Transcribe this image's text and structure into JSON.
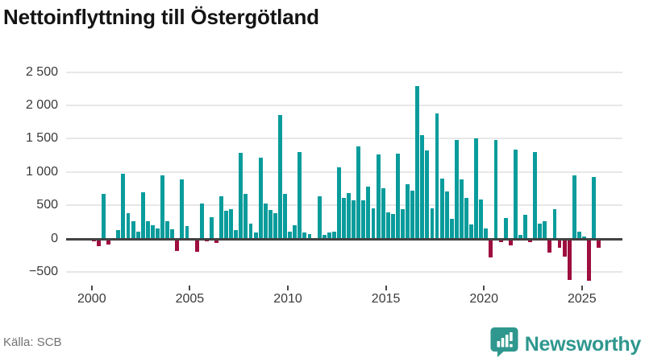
{
  "title": "Nettoinflyttning till Östergötland",
  "source": "Källa: SCB",
  "branding": {
    "name": "Newsworthy",
    "badge_icon": "bar-chart-speech-bubble-icon"
  },
  "colors": {
    "positive_bar": "#0a9c9c",
    "negative_bar": "#9e0e3e",
    "logo_teal": "#2f978e",
    "grid": "#e7e7e7",
    "zero_line": "#424242",
    "axis_text": "#3a3a3a",
    "source_text": "#737373",
    "title_text": "#141414"
  },
  "chart_data": {
    "type": "bar",
    "title": "Nettoinflyttning till Östergötland",
    "unit": "personer (nettoinflyttning per kvartal)",
    "frequency": "quarterly",
    "start": "2000-Q1",
    "end": "2025-Q4",
    "grid": "horizontal",
    "legend": "none",
    "ylim": [
      -700,
      2600
    ],
    "x_tick_years": [
      2000,
      2005,
      2010,
      2015,
      2020,
      2025
    ],
    "y_ticks": [
      {
        "value": 2500,
        "label": "2 500"
      },
      {
        "value": 2000,
        "label": "2 000"
      },
      {
        "value": 1500,
        "label": "1 500"
      },
      {
        "value": 1000,
        "label": "1 000"
      },
      {
        "value": 500,
        "label": "500"
      },
      {
        "value": 0,
        "label": "0"
      },
      {
        "value": -500,
        "label": "−500"
      }
    ],
    "years": [
      {
        "year": 2000,
        "q": [
          -40,
          -115,
          670,
          -90
        ]
      },
      {
        "year": 2001,
        "q": [
          0,
          125,
          975,
          385
        ]
      },
      {
        "year": 2002,
        "q": [
          265,
          105,
          700,
          265
        ]
      },
      {
        "year": 2003,
        "q": [
          200,
          155,
          950,
          255
        ]
      },
      {
        "year": 2004,
        "q": [
          135,
          -185,
          890,
          190
        ]
      },
      {
        "year": 2005,
        "q": [
          0,
          -200,
          530,
          -45
        ]
      },
      {
        "year": 2006,
        "q": [
          315,
          -70,
          640,
          415
        ]
      },
      {
        "year": 2007,
        "q": [
          445,
          125,
          1290,
          670
        ]
      },
      {
        "year": 2008,
        "q": [
          220,
          95,
          1215,
          520
        ]
      },
      {
        "year": 2009,
        "q": [
          435,
          375,
          1860,
          670
        ]
      },
      {
        "year": 2010,
        "q": [
          105,
          205,
          1300,
          85
        ]
      },
      {
        "year": 2011,
        "q": [
          70,
          0,
          640,
          55
        ]
      },
      {
        "year": 2012,
        "q": [
          95,
          105,
          1065,
          605
        ]
      },
      {
        "year": 2013,
        "q": [
          680,
          580,
          1390,
          580
        ]
      },
      {
        "year": 2014,
        "q": [
          780,
          450,
          1260,
          750
        ]
      },
      {
        "year": 2015,
        "q": [
          395,
          365,
          1275,
          445
        ]
      },
      {
        "year": 2016,
        "q": [
          820,
          725,
          2290,
          1550
        ]
      },
      {
        "year": 2017,
        "q": [
          1325,
          450,
          1875,
          895
        ]
      },
      {
        "year": 2018,
        "q": [
          710,
          295,
          1480,
          890
        ]
      },
      {
        "year": 2019,
        "q": [
          610,
          215,
          1505,
          590
        ]
      },
      {
        "year": 2020,
        "q": [
          155,
          -280,
          1480,
          -50
        ]
      },
      {
        "year": 2021,
        "q": [
          305,
          -105,
          1335,
          50
        ]
      },
      {
        "year": 2022,
        "q": [
          355,
          -60,
          1295,
          225
        ]
      },
      {
        "year": 2023,
        "q": [
          265,
          -215,
          445,
          -140
        ]
      },
      {
        "year": 2024,
        "q": [
          -275,
          -620,
          950,
          105
        ]
      },
      {
        "year": 2025,
        "q": [
          25,
          -630,
          930,
          -140
        ]
      }
    ]
  }
}
